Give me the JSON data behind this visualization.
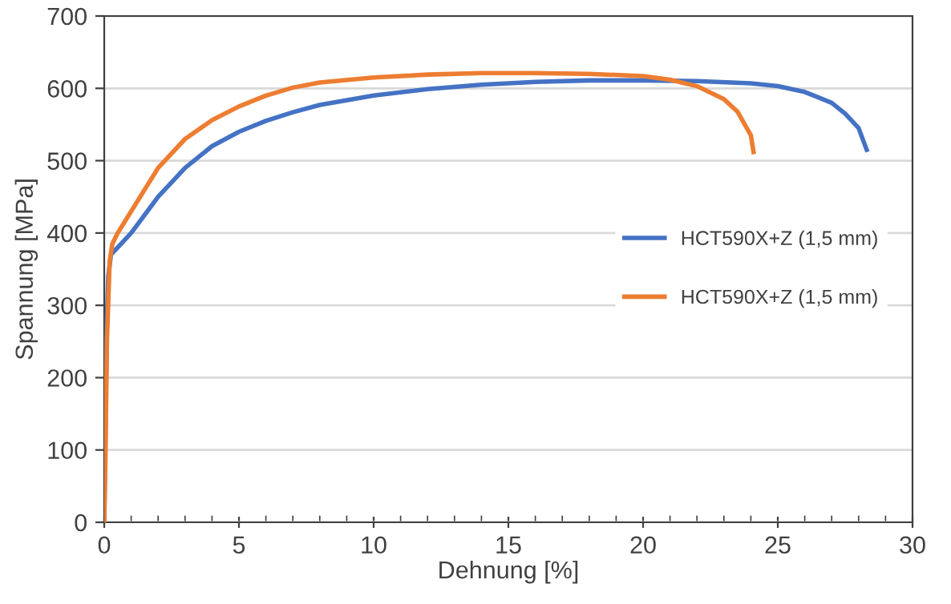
{
  "chart_data": {
    "type": "line",
    "xlabel": "Dehnung [%]",
    "ylabel": "Spannung [MPa]",
    "xlim": [
      0,
      30
    ],
    "xticks": [
      0,
      5,
      10,
      15,
      20,
      25,
      30
    ],
    "ylim": [
      0,
      700
    ],
    "yticks": [
      0,
      100,
      200,
      300,
      400,
      500,
      600,
      700
    ],
    "grid": "y",
    "legend": "center right",
    "marker": "none",
    "line_style": "solid",
    "series": [
      {
        "name": "HCT590X+Z (1,5 mm)",
        "color": "#4472c4",
        "x": [
          0,
          0.05,
          0.1,
          0.15,
          0.25,
          0.5,
          1,
          2,
          3,
          4,
          5,
          6,
          7,
          8,
          10,
          12,
          14,
          16,
          18,
          20,
          22,
          24,
          25,
          26,
          27,
          27.5,
          28,
          28.3
        ],
        "values": [
          0,
          150,
          280,
          340,
          370,
          380,
          400,
          450,
          490,
          520,
          540,
          555,
          567,
          577,
          590,
          599,
          605,
          609,
          611,
          611,
          610,
          607,
          603,
          595,
          580,
          565,
          545,
          515
        ]
      },
      {
        "name": "HCT590X+Z (1,5 mm)",
        "color": "#ed7d31",
        "x": [
          0,
          0.05,
          0.1,
          0.2,
          0.3,
          0.5,
          1,
          2,
          3,
          4,
          5,
          6,
          7,
          8,
          10,
          12,
          14,
          16,
          18,
          20,
          21,
          22,
          23,
          23.5,
          24,
          24.1
        ],
        "values": [
          0,
          100,
          250,
          360,
          385,
          400,
          430,
          490,
          530,
          556,
          575,
          590,
          601,
          608,
          615,
          619,
          621,
          621,
          620,
          617,
          612,
          603,
          585,
          568,
          535,
          512
        ]
      }
    ]
  }
}
